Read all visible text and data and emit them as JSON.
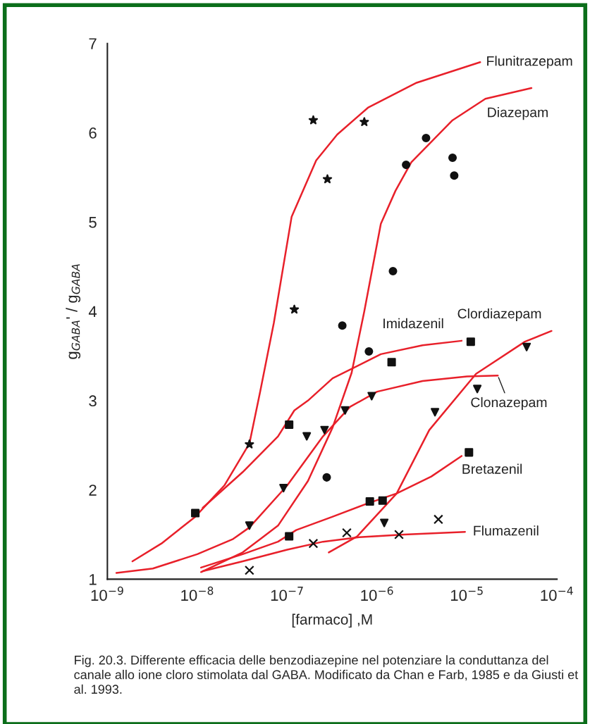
{
  "chart_data": {
    "type": "line",
    "xlabel": "[farmaco] ,M",
    "ylabel": "g$_{GABA}$' / g$_{GABA}$",
    "log": "x",
    "grid": false,
    "legend": false,
    "xlim": [
      1e-09,
      0.0001
    ],
    "ylim": [
      1,
      7
    ],
    "xticks": [
      {
        "value": 1e-09,
        "label": "10$^{−9}$"
      },
      {
        "value": 1e-08,
        "label": "10$^{−8}$"
      },
      {
        "value": 1e-07,
        "label": "10$^{−7}$"
      },
      {
        "value": 1e-06,
        "label": "10$^{−6}$"
      },
      {
        "value": 1e-05,
        "label": "10$^{−5}$"
      },
      {
        "value": 0.0001,
        "label": "10$^{−4}$"
      }
    ],
    "yticks": [
      1,
      2,
      3,
      4,
      5,
      6,
      7
    ],
    "series": [
      {
        "name": "Flunitrazepam",
        "color": "#e8202a",
        "x": [
          1.9e-09,
          4e-09,
          9.5e-09,
          2e-08,
          3.8e-08,
          5e-08,
          7.1e-08,
          1.12e-07,
          2.1e-07,
          3.6e-07,
          7.9e-07,
          2.75e-06,
          1.4e-05
        ],
        "values": [
          1.2,
          1.4,
          1.7,
          2.05,
          2.52,
          3.1,
          3.87,
          5.06,
          5.69,
          5.98,
          6.28,
          6.56,
          6.79
        ]
      },
      {
        "type": "scatter",
        "color": "#111111",
        "marker": "star",
        "x": [
          3.8e-08,
          1.2e-07,
          1.95e-07,
          2.8e-07,
          7.2e-07
        ],
        "values": [
          2.51,
          4.02,
          6.14,
          5.48,
          6.12
        ]
      },
      {
        "name": "Diazepam",
        "color": "#e8202a",
        "x": [
          1.1e-08,
          3.2e-08,
          7.9e-08,
          1.7e-07,
          3.2e-07,
          5.2e-07,
          7.2e-07,
          1.1e-06,
          1.6e-06,
          2.4e-06,
          6.9e-06,
          1.6e-05,
          5.2e-05
        ],
        "values": [
          1.08,
          1.3,
          1.6,
          2.1,
          2.7,
          3.31,
          4.0,
          4.98,
          5.35,
          5.67,
          6.14,
          6.38,
          6.5
        ]
      },
      {
        "type": "scatter",
        "color": "#111111",
        "marker": "circle",
        "x": [
          2.75e-07,
          4.1e-07,
          8.1e-07,
          1.5e-06,
          2.1e-06,
          3.5e-06,
          6.9e-06,
          7.2e-06
        ],
        "values": [
          2.14,
          3.84,
          3.55,
          4.45,
          5.64,
          5.94,
          5.72,
          5.52
        ]
      },
      {
        "name": "Imidazenil",
        "color": "#e8202a",
        "x": [
          1.15e-08,
          3.2e-08,
          7.9e-08,
          1.2e-07,
          1.7e-07,
          3.2e-07,
          1.1e-06,
          3.2e-06,
          8.7e-06
        ],
        "values": [
          1.8,
          2.2,
          2.6,
          2.89,
          3.0,
          3.25,
          3.52,
          3.62,
          3.67
        ]
      },
      {
        "type": "scatter",
        "color": "#111111",
        "marker": "square",
        "x": [
          9.5e-09,
          1.05e-07,
          1.45e-06,
          1.1e-05
        ],
        "values": [
          1.74,
          2.73,
          3.43,
          3.66
        ]
      },
      {
        "name": "Clordiazepam",
        "color": "#e8202a",
        "x": [
          2.9e-07,
          6e-07,
          1.65e-06,
          3.8e-06,
          1.26e-05,
          4.4e-05,
          8.7e-05
        ],
        "values": [
          1.3,
          1.48,
          1.96,
          2.67,
          3.3,
          3.66,
          3.78
        ]
      },
      {
        "type": "scatter",
        "color": "#111111",
        "marker": "triangle",
        "x": [
          1.2e-06,
          4.4e-06,
          1.3e-05,
          4.6e-05
        ],
        "values": [
          1.63,
          2.87,
          3.13,
          3.6
        ]
      },
      {
        "name": "Clonazepam",
        "color": "#e8202a",
        "x": [
          1.26e-09,
          3.2e-09,
          1e-08,
          2.5e-08,
          3.8e-08,
          1e-07,
          2.5e-07,
          5e-07,
          1e-06,
          3.2e-06,
          1e-05,
          2.2e-05
        ],
        "values": [
          1.07,
          1.12,
          1.28,
          1.45,
          1.58,
          2.05,
          2.6,
          2.93,
          3.1,
          3.22,
          3.27,
          3.28
        ]
      },
      {
        "type": "scatter",
        "color": "#111111",
        "marker": "triangle",
        "x": [
          3.8e-08,
          9.1e-08,
          1.65e-07,
          2.6e-07,
          4.4e-07,
          8.7e-07
        ],
        "values": [
          1.6,
          2.02,
          2.6,
          2.67,
          2.89,
          3.05
        ]
      },
      {
        "name": "Bretazenil",
        "color": "#e8202a",
        "x": [
          1.1e-08,
          3.2e-08,
          7.9e-08,
          1.26e-07,
          3.2e-07,
          7.9e-07,
          1.65e-06,
          4e-06,
          8.7e-06
        ],
        "values": [
          1.13,
          1.28,
          1.42,
          1.55,
          1.7,
          1.85,
          1.96,
          2.15,
          2.38
        ]
      },
      {
        "type": "scatter",
        "color": "#111111",
        "marker": "square",
        "x": [
          1.05e-07,
          8.3e-07,
          1.15e-06,
          1.05e-05
        ],
        "values": [
          1.48,
          1.87,
          1.88,
          2.42
        ]
      },
      {
        "name": "Flumazenil",
        "color": "#e8202a",
        "x": [
          1.15e-08,
          3.2e-08,
          1e-07,
          2.5e-07,
          6.3e-07,
          2e-06,
          9.5e-06
        ],
        "values": [
          1.09,
          1.2,
          1.33,
          1.42,
          1.47,
          1.5,
          1.53
        ]
      },
      {
        "type": "scatter",
        "color": "#111111",
        "marker": "cross",
        "x": [
          3.8e-08,
          1.95e-07,
          4.6e-07,
          1.75e-06,
          4.8e-06
        ],
        "values": [
          1.1,
          1.4,
          1.52,
          1.5,
          1.67
        ]
      }
    ],
    "annotations": [
      "Fig. 20.3. Differente efficacia delle benzodiazepine nel potenziare la conduttanza del canale allo ione cloro stimolata dal GABA. Modificato da Chan e Farb, 1985 e da Giusti et al. 1993."
    ]
  }
}
